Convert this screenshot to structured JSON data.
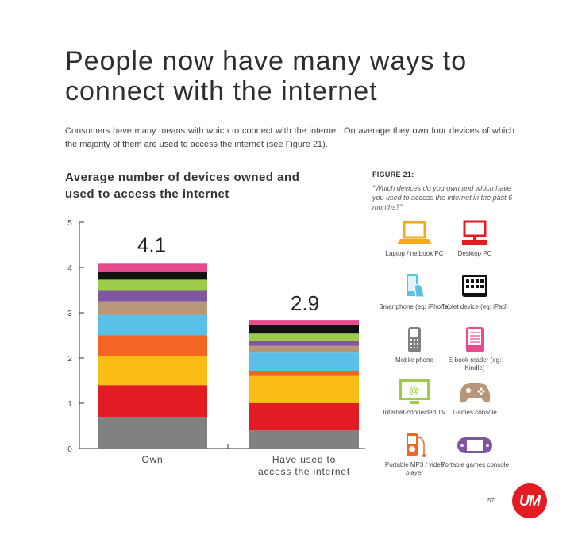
{
  "title": "People now have many ways to connect with the internet",
  "intro": "Consumers have many means with which to connect with the internet. On average they own four devices of which the  majority of them are used to access the internet (see Figure 21).",
  "chart_heading": "Average number of devices owned and used to access the internet",
  "figure": {
    "label": "FIGURE 21:",
    "question": "\"Which devices do you own and which have you used to access the internet in the past 6 months?\""
  },
  "devices": [
    {
      "label": "Laptop / netbook PC",
      "icon": "laptop-icon",
      "color": "#f7a81b"
    },
    {
      "label": "Desktop PC",
      "icon": "desktop-icon",
      "color": "#e31b23"
    },
    {
      "label": "Smartphone (eg: iPhone)",
      "icon": "smartphone-icon",
      "color": "#5bc0e8"
    },
    {
      "label": "Tablet device (eg: iPad)",
      "icon": "tablet-icon",
      "color": "#111111"
    },
    {
      "label": "Mobile phone",
      "icon": "mobile-phone-icon",
      "color": "#808080"
    },
    {
      "label": "E-book reader (eg: Kindle)",
      "icon": "ebook-reader-icon",
      "color": "#e84a8c"
    },
    {
      "label": "Internet-connected TV",
      "icon": "tv-icon",
      "color": "#9ccc4a"
    },
    {
      "label": "Games console",
      "icon": "gamepad-icon",
      "color": "#b8967a"
    },
    {
      "label": "Portable MP3 / video player",
      "icon": "mp3-player-icon",
      "color": "#f26522"
    },
    {
      "label": "Portable games console",
      "icon": "portable-console-icon",
      "color": "#7e57a0"
    }
  ],
  "page_number": "57",
  "logo_text": "UM",
  "chart_data": {
    "type": "bar",
    "stacked": true,
    "categories": [
      "Own",
      "Have used to access the internet"
    ],
    "totals": [
      "4.1",
      "2.9"
    ],
    "ylim": [
      0,
      5
    ],
    "yticks": [
      "0",
      "1",
      "2",
      "3",
      "4",
      "5"
    ],
    "grid": false,
    "series": [
      {
        "color": "#808080",
        "values": [
          0.7,
          0.4
        ]
      },
      {
        "color": "#e31b23",
        "values": [
          0.7,
          0.6
        ]
      },
      {
        "color": "#fbbc15",
        "values": [
          0.65,
          0.6
        ]
      },
      {
        "color": "#f26522",
        "values": [
          0.45,
          0.12
        ]
      },
      {
        "color": "#5bc0e8",
        "values": [
          0.45,
          0.4
        ]
      },
      {
        "color": "#b8967a",
        "values": [
          0.3,
          0.15
        ]
      },
      {
        "color": "#7e57a0",
        "values": [
          0.25,
          0.1
        ]
      },
      {
        "color": "#9ccc4a",
        "values": [
          0.23,
          0.17
        ]
      },
      {
        "color": "#111111",
        "values": [
          0.17,
          0.2
        ]
      },
      {
        "color": "#e84a8c",
        "values": [
          0.2,
          0.1
        ]
      }
    ]
  }
}
